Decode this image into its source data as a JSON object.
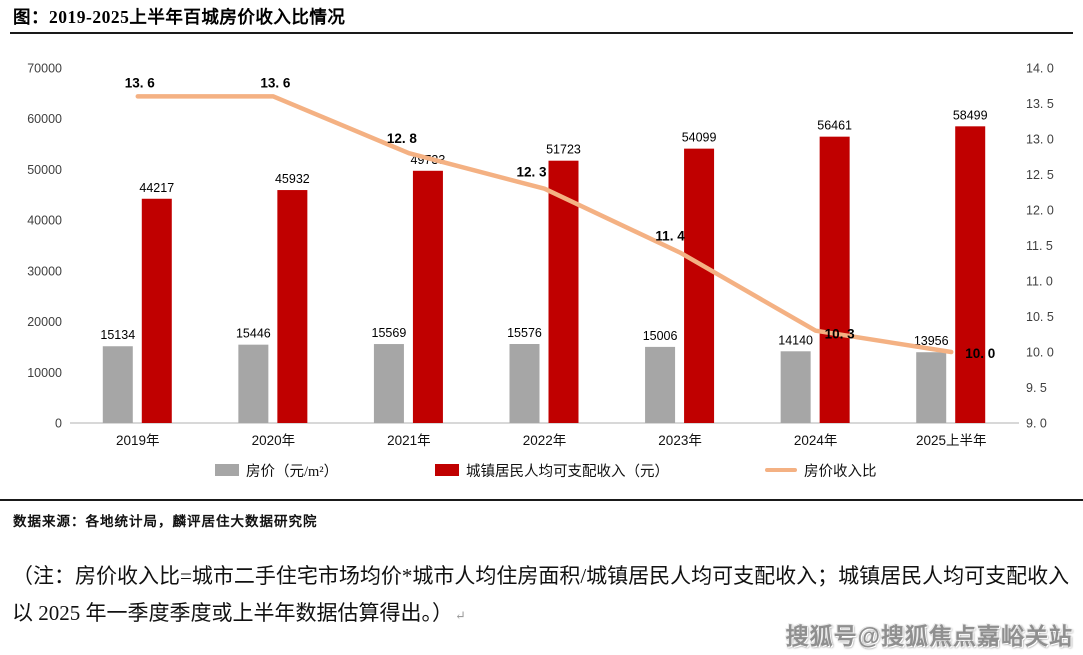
{
  "page": {
    "title": "图：2019-2025上半年百城房价收入比情况",
    "source": "数据来源：各地统计局，麟评居住大数据研究院",
    "note": "（注：房价收入比=城市二手住宅市场均价*城市人均住房面积/城镇居民人均可支配收入；城镇居民人均可支配收入以 2025 年一季度季度或上半年数据估算得出。）",
    "note_mark": "↵",
    "watermark": "搜狐号@搜狐焦点嘉峪关站"
  },
  "legend": {
    "items": [
      {
        "label": "房价（元/m²）",
        "swatch": "bar",
        "color": "#A6A6A6"
      },
      {
        "label": "城镇居民人均可支配收入（元）",
        "swatch": "bar",
        "color": "#C00000"
      },
      {
        "label": "房价收入比",
        "swatch": "line",
        "color": "#F4B183"
      }
    ]
  },
  "chart_data": {
    "type": "bar",
    "subtype": "grouped-bars-with-line",
    "title": "2019-2025上半年百城房价收入比情况",
    "categories": [
      "2019年",
      "2020年",
      "2021年",
      "2022年",
      "2023年",
      "2024年",
      "2025上半年"
    ],
    "series": [
      {
        "name": "房价（元/m²）",
        "type": "bar",
        "axis": "left",
        "color": "#A6A6A6",
        "values": [
          15134,
          15446,
          15569,
          15576,
          15006,
          14140,
          13956
        ],
        "labels": [
          "15134",
          "15446",
          "15569",
          "15576",
          "15006",
          "14140",
          "13956"
        ]
      },
      {
        "name": "城镇居民人均可支配收入（元）",
        "type": "bar",
        "axis": "left",
        "color": "#C00000",
        "values": [
          44217,
          45932,
          49733,
          51723,
          54099,
          56461,
          58499
        ],
        "labels": [
          "44217",
          "45932",
          "49733",
          "51723",
          "54099",
          "56461",
          "58499"
        ]
      },
      {
        "name": "房价收入比",
        "type": "line",
        "axis": "right",
        "color": "#F4B183",
        "values": [
          13.6,
          13.6,
          12.8,
          12.3,
          11.4,
          10.3,
          10.0
        ],
        "labels": [
          "13. 6",
          "13. 6",
          "12. 8",
          "12. 3",
          "11. 4",
          "10. 3",
          "10. 0"
        ]
      }
    ],
    "left_axis": {
      "min": 0,
      "max": 70000,
      "step": 10000,
      "ticks": [
        "0",
        "10000",
        "20000",
        "30000",
        "40000",
        "50000",
        "60000",
        "70000"
      ]
    },
    "right_axis": {
      "min": 9.0,
      "max": 14.0,
      "step": 0.5,
      "ticks": [
        "9. 0",
        "9. 5",
        "10. 0",
        "10. 5",
        "11. 0",
        "11. 5",
        "12. 0",
        "12. 5",
        "13. 0",
        "13. 5",
        "14. 0"
      ]
    },
    "grid": false,
    "legend_position": "bottom",
    "axis_label_color": "#3f3f3f",
    "baseline_color": "#d8d8d8"
  }
}
